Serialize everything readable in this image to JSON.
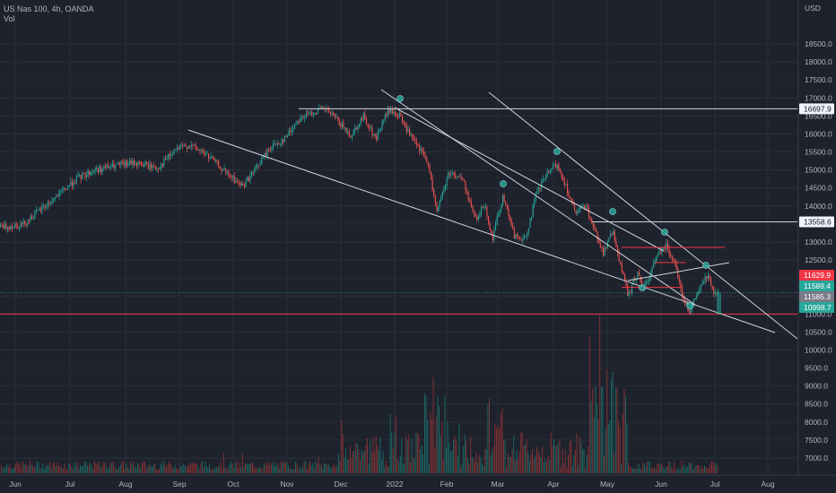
{
  "header": {
    "symbol_line": "US Nas 100, 4h, OANDA",
    "vol_label": "Vol",
    "currency": "USD"
  },
  "chart_data": {
    "type": "candlestick",
    "y_ticks": [
      "18500.0",
      "18000.0",
      "17500.0",
      "17000.0",
      "16500.0",
      "16000.0",
      "15500.0",
      "15000.0",
      "14500.0",
      "14000.0",
      "13500.0",
      "13000.0",
      "12500.0",
      "12000.0",
      "11500.0",
      "11000.0",
      "10500.0",
      "10000.0",
      "9500.0",
      "9000.0",
      "8500.0",
      "8000.0",
      "7500.0",
      "7000.0"
    ],
    "y_tick_values": [
      18500,
      18000,
      17500,
      17000,
      16500,
      16000,
      15500,
      15000,
      14500,
      14000,
      13500,
      13000,
      12500,
      12000,
      11500,
      11000,
      10500,
      10000,
      9500,
      9000,
      8500,
      8000,
      7500,
      7000
    ],
    "x_ticks": [
      "Jun",
      "Jul",
      "Aug",
      "Sep",
      "Oct",
      "Nov",
      "Dec",
      "2022",
      "Feb",
      "Mar",
      "Apr",
      "May",
      "Jun",
      "Jul",
      "Aug"
    ],
    "price_key_points": [
      [
        0,
        13400
      ],
      [
        25,
        13500
      ],
      [
        55,
        14100
      ],
      [
        85,
        14750
      ],
      [
        105,
        15000
      ],
      [
        125,
        15100
      ],
      [
        150,
        15200
      ],
      [
        175,
        15050
      ],
      [
        195,
        15550
      ],
      [
        210,
        15700
      ],
      [
        225,
        15500
      ],
      [
        238,
        15250
      ],
      [
        252,
        14900
      ],
      [
        262,
        14700
      ],
      [
        270,
        14550
      ],
      [
        285,
        15050
      ],
      [
        300,
        15600
      ],
      [
        318,
        15900
      ],
      [
        332,
        16400
      ],
      [
        348,
        16600
      ],
      [
        362,
        16700
      ],
      [
        375,
        16400
      ],
      [
        390,
        15950
      ],
      [
        405,
        16500
      ],
      [
        418,
        15850
      ],
      [
        432,
        16650
      ],
      [
        445,
        16500
      ],
      [
        460,
        15800
      ],
      [
        475,
        15300
      ],
      [
        487,
        13850
      ],
      [
        500,
        14950
      ],
      [
        515,
        14750
      ],
      [
        530,
        13600
      ],
      [
        540,
        14100
      ],
      [
        548,
        13050
      ],
      [
        560,
        14300
      ],
      [
        573,
        13150
      ],
      [
        585,
        13050
      ],
      [
        597,
        14300
      ],
      [
        608,
        14850
      ],
      [
        620,
        15150
      ],
      [
        630,
        14600
      ],
      [
        641,
        13750
      ],
      [
        652,
        14050
      ],
      [
        662,
        13350
      ],
      [
        672,
        12700
      ],
      [
        683,
        13300
      ],
      [
        693,
        12150
      ],
      [
        700,
        11500
      ],
      [
        710,
        12150
      ],
      [
        717,
        11700
      ],
      [
        725,
        12150
      ],
      [
        735,
        12800
      ],
      [
        742,
        12900
      ],
      [
        752,
        12450
      ],
      [
        760,
        11500
      ],
      [
        768,
        11050
      ],
      [
        778,
        11600
      ],
      [
        788,
        12100
      ],
      [
        795,
        11650
      ],
      [
        801,
        11585
      ]
    ],
    "last_price": 11585.3,
    "lines_horizontal": [
      {
        "label": "16697.9",
        "value": 16697.9
      },
      {
        "label": "13558.6",
        "value": 13558.6
      },
      {
        "label": "10998.7",
        "value": 10998.7,
        "color": "#f23645"
      }
    ],
    "price_tags": [
      {
        "label": "11629.9",
        "value": 11629.9,
        "color": "#f23645"
      },
      {
        "label": "11589.4",
        "value": 11589.4,
        "color": "#26a69a"
      },
      {
        "label": "11585.3",
        "value": 11585.3,
        "color": "#787b86"
      },
      {
        "label": "10998.7",
        "value": 10998.7,
        "color": "#26a69a"
      }
    ],
    "colors": {
      "up": "#26a69a",
      "down": "#ef5350",
      "background": "#1e222d",
      "text": "#b2b5be"
    },
    "grid": true
  }
}
